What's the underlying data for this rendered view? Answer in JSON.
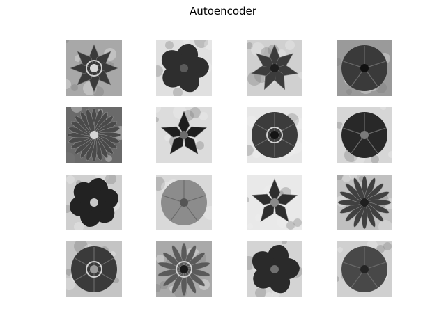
{
  "figure": {
    "title": "Autoencoder"
  },
  "grid": {
    "rows": 4,
    "cols": 4,
    "tiles": [
      {
        "name": "flower-image-1",
        "kind": "star",
        "petals": 8,
        "bg": "#a8a8a8",
        "petal": "#3a3a3a",
        "center": "#d8d8d8",
        "ring": true
      },
      {
        "name": "flower-image-2",
        "kind": "blob",
        "petals": 5,
        "bg": "#e0e0e0",
        "petal": "#2e2e2e",
        "center": "#5a5a5a",
        "ring": false
      },
      {
        "name": "flower-image-3",
        "kind": "star",
        "petals": 7,
        "bg": "#d0d0d0",
        "petal": "#3c3c3c",
        "center": "#1e1e1e",
        "ring": false
      },
      {
        "name": "flower-image-4",
        "kind": "round",
        "petals": 5,
        "bg": "#9a9a9a",
        "petal": "#3a3a3a",
        "center": "#111111",
        "ring": false
      },
      {
        "name": "flower-image-5",
        "kind": "daisy",
        "petals": 24,
        "bg": "#6a6a6a",
        "petal": "#4a4a4a",
        "center": "#d5d5d5",
        "ring": false
      },
      {
        "name": "flower-image-6",
        "kind": "star",
        "petals": 5,
        "bg": "#dcdcdc",
        "petal": "#1e1e1e",
        "center": "#6c6c6c",
        "ring": false
      },
      {
        "name": "flower-image-7",
        "kind": "round",
        "petals": 6,
        "bg": "#e6e6e6",
        "petal": "#3c3c3c",
        "center": "#141414",
        "ring": true
      },
      {
        "name": "flower-image-8",
        "kind": "round",
        "petals": 5,
        "bg": "#d6d6d6",
        "petal": "#282828",
        "center": "#7a7a7a",
        "ring": false
      },
      {
        "name": "flower-image-9",
        "kind": "blob",
        "petals": 6,
        "bg": "#cfcfcf",
        "petal": "#222222",
        "center": "#c8c8c8",
        "ring": false
      },
      {
        "name": "flower-image-10",
        "kind": "round",
        "petals": 5,
        "bg": "#d9d9d9",
        "petal": "#8c8c8c",
        "center": "#555555",
        "ring": false
      },
      {
        "name": "flower-image-11",
        "kind": "star",
        "petals": 5,
        "bg": "#e9e9e9",
        "petal": "#2e2e2e",
        "center": "#8a8a8a",
        "ring": false
      },
      {
        "name": "flower-image-12",
        "kind": "daisy",
        "petals": 16,
        "bg": "#c0c0c0",
        "petal": "#404040",
        "center": "#202020",
        "ring": false
      },
      {
        "name": "flower-image-13",
        "kind": "round",
        "petals": 6,
        "bg": "#c4c4c4",
        "petal": "#3a3a3a",
        "center": "#9a9a9a",
        "ring": true
      },
      {
        "name": "flower-image-14",
        "kind": "daisy",
        "petals": 14,
        "bg": "#a9a9a9",
        "petal": "#5a5a5a",
        "center": "#1a1a1a",
        "ring": true
      },
      {
        "name": "flower-image-15",
        "kind": "blob",
        "petals": 5,
        "bg": "#d4d4d4",
        "petal": "#2a2a2a",
        "center": "#707070",
        "ring": false
      },
      {
        "name": "flower-image-16",
        "kind": "round",
        "petals": 5,
        "bg": "#d0d0d0",
        "petal": "#484848",
        "center": "#242424",
        "ring": false
      }
    ]
  }
}
